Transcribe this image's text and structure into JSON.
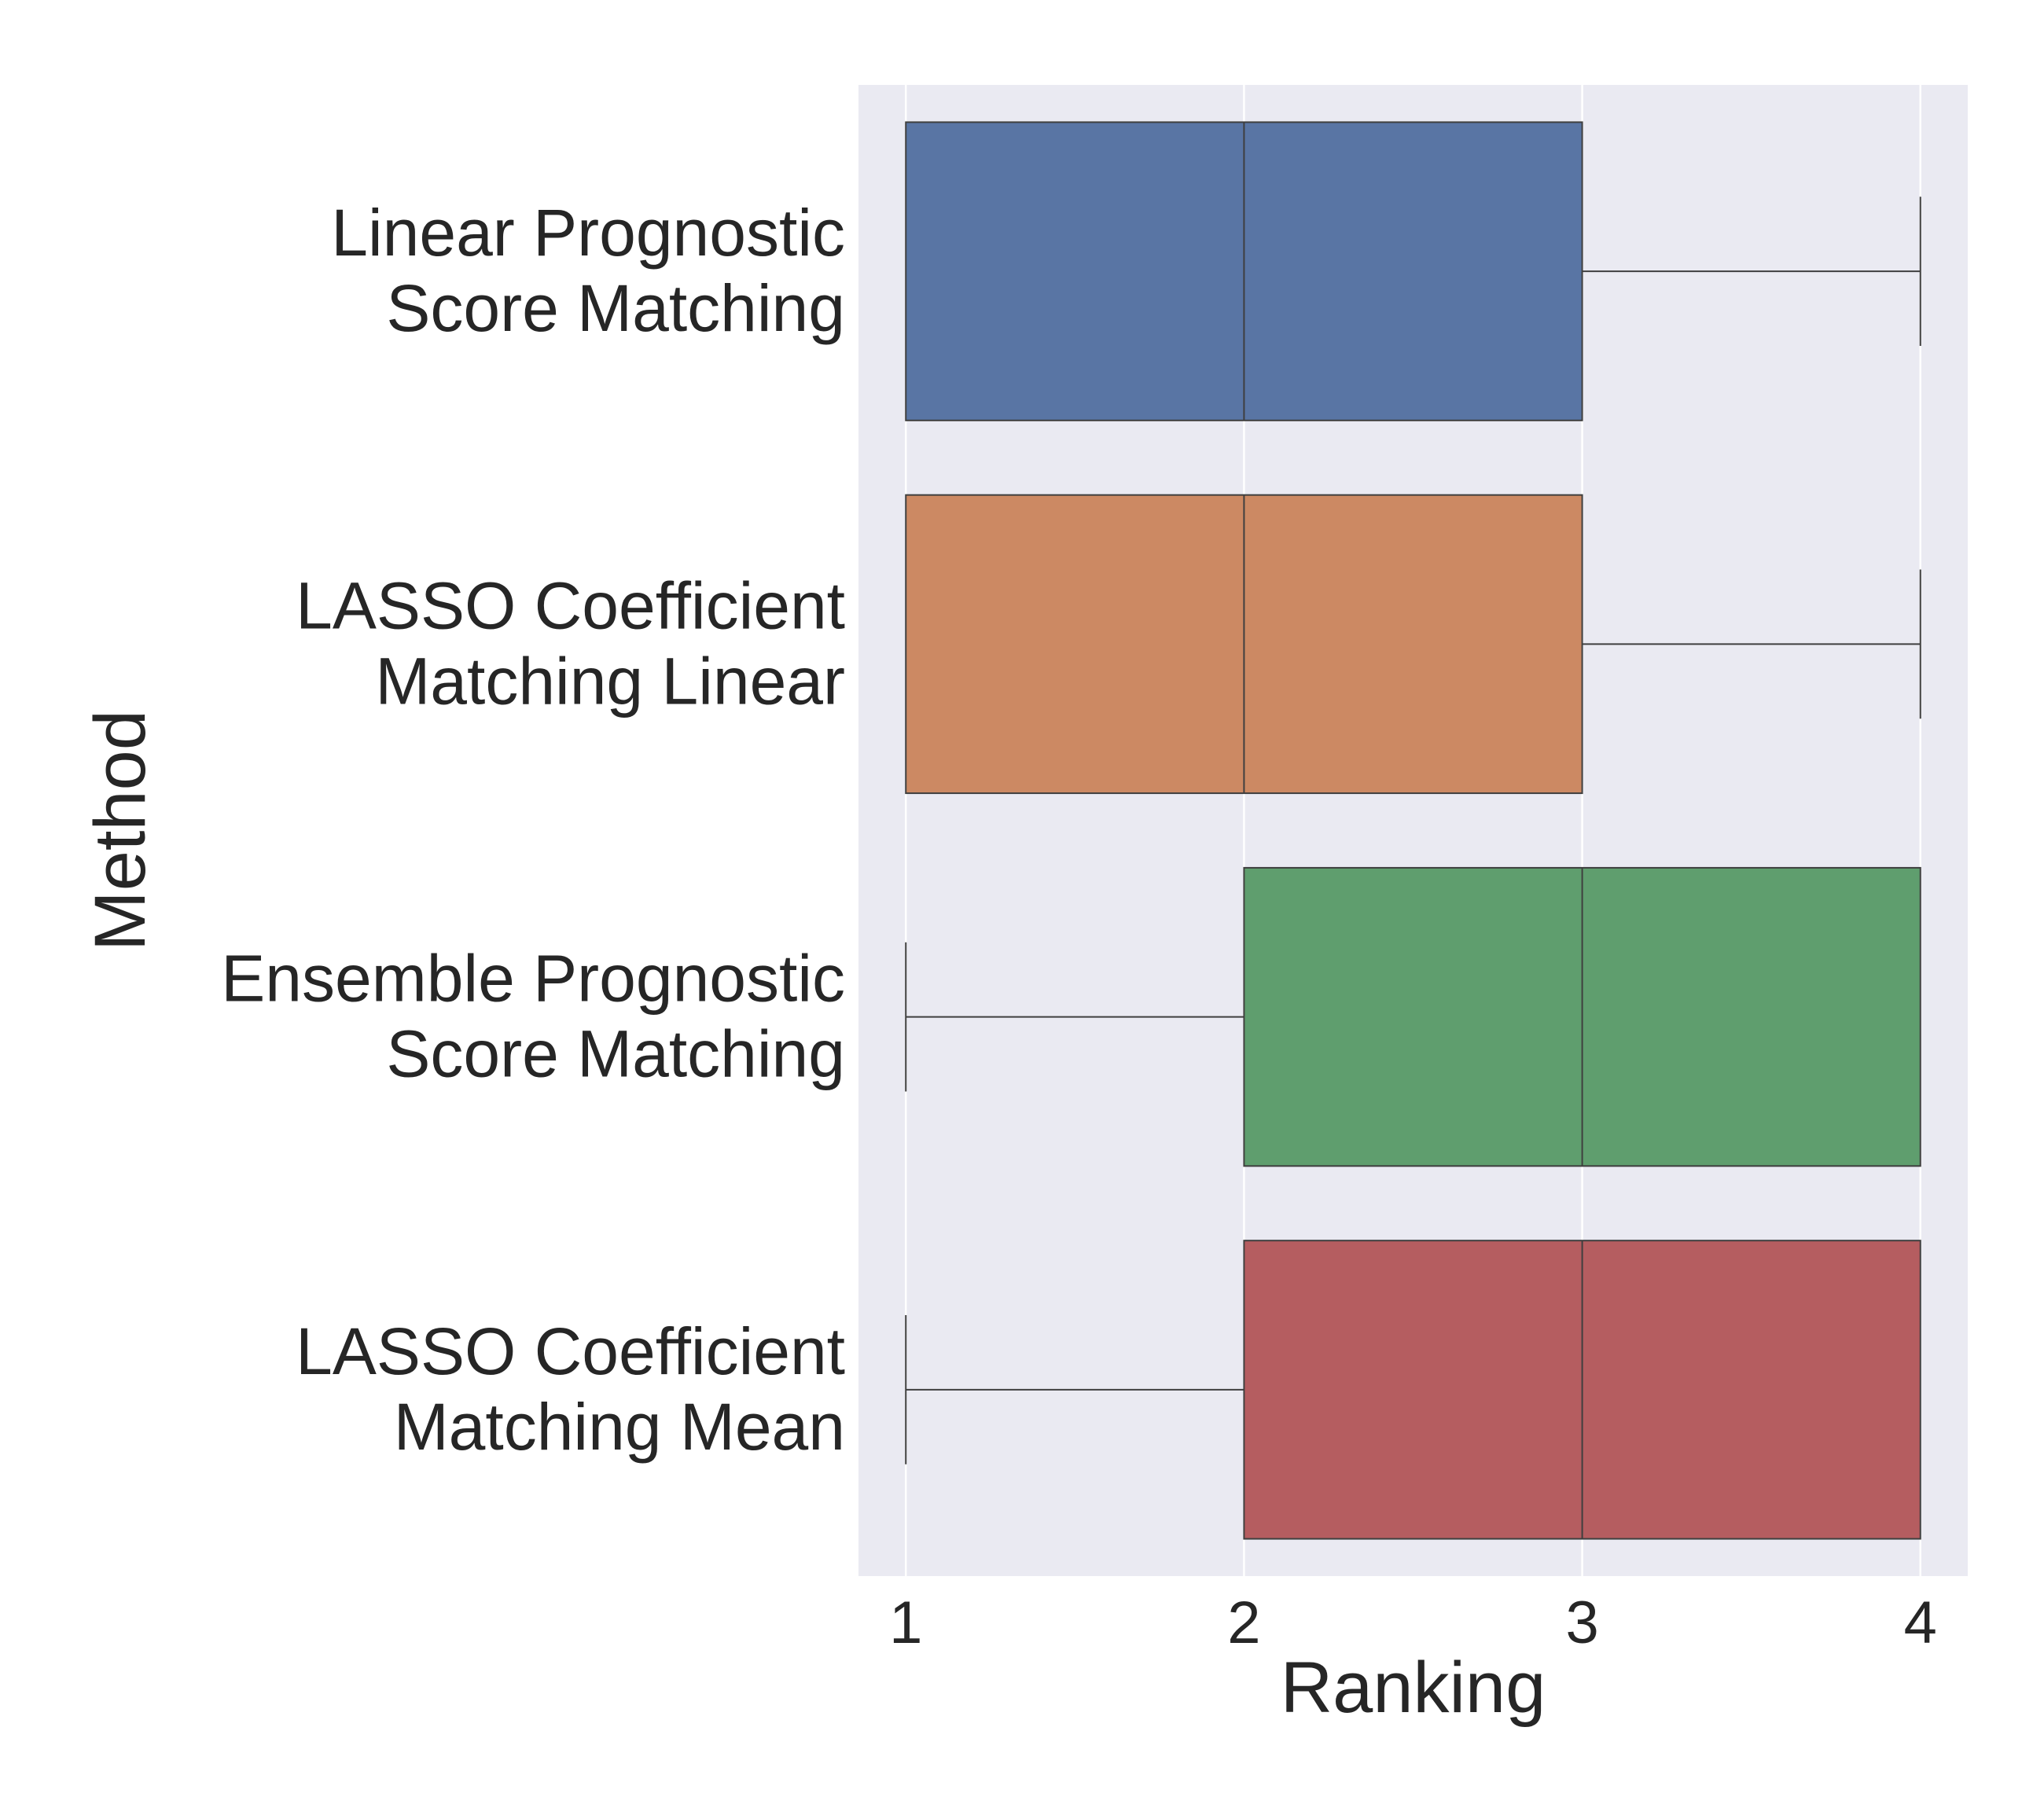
{
  "chart_data": {
    "type": "boxplot",
    "orientation": "horizontal",
    "xlabel": "Ranking",
    "ylabel": "Method",
    "xlim": [
      0.86,
      4.14
    ],
    "xticks": [
      "1",
      "2",
      "3",
      "4"
    ],
    "grid": true,
    "background": "#eaeaf2",
    "categories": [
      {
        "label_lines": [
          "Linear Prognostic",
          "Score Matching"
        ]
      },
      {
        "label_lines": [
          "LASSO Coefficient",
          "Matching Linear"
        ]
      },
      {
        "label_lines": [
          "Ensemble Prognostic",
          "Score Matching"
        ]
      },
      {
        "label_lines": [
          "LASSO Coefficient",
          "Matching Mean"
        ]
      }
    ],
    "boxes": [
      {
        "min": 1,
        "q1": 1,
        "median": 2,
        "q3": 3,
        "max": 4,
        "color": "#5975a4"
      },
      {
        "min": 1,
        "q1": 1,
        "median": 2,
        "q3": 3,
        "max": 4,
        "color": "#cc8963"
      },
      {
        "min": 1,
        "q1": 2,
        "median": 3,
        "q3": 4,
        "max": 4,
        "color": "#5f9e6e"
      },
      {
        "min": 1,
        "q1": 2,
        "median": 3,
        "q3": 4,
        "max": 4,
        "color": "#b55d60"
      }
    ]
  }
}
